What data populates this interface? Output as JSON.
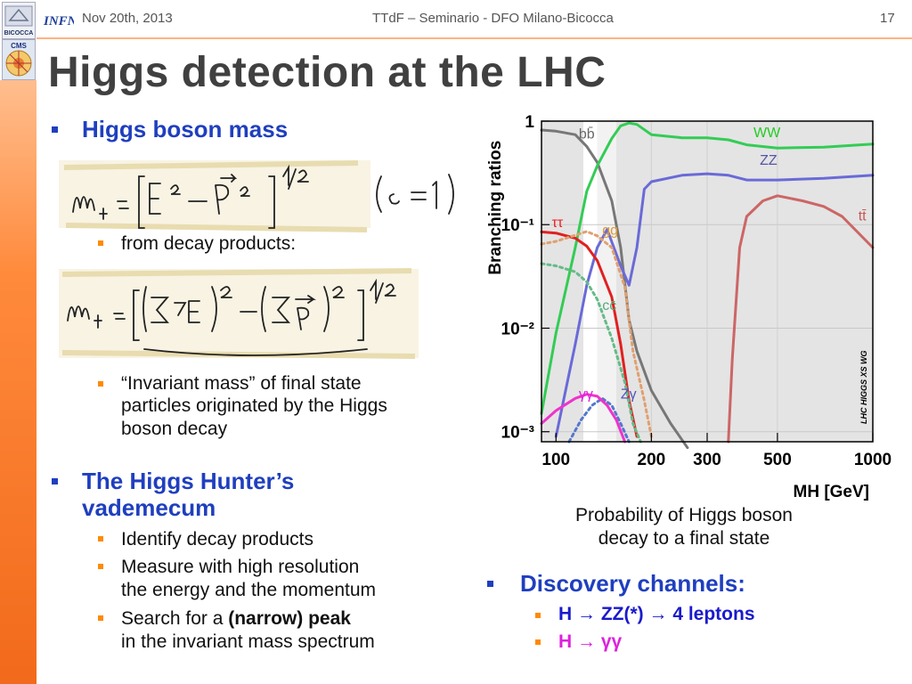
{
  "header": {
    "date": "Nov 20th, 2013",
    "center": "TTdF – Seminario - DFO Milano-Bicocca",
    "page": "17",
    "logos": {
      "infn": "INFN",
      "bicocca": "BICOCCA",
      "cms": "CMS"
    }
  },
  "title": "Higgs detection at the LHC",
  "left": {
    "bullet1": "Higgs boson mass",
    "sub1": "from decay products:",
    "sub2_line1": "“Invariant mass” of final state",
    "sub2_line2": "particles originated by the Higgs",
    "sub2_line3": "boson decay",
    "bullet2_line1": "The Higgs Hunter’s",
    "bullet2_line2": "vademecum",
    "v1": "Identify decay products",
    "v2_line1": "Measure with high resolution",
    "v2_line2": "the energy and the momentum",
    "v3_a": "Search for a ",
    "v3_b": "(narrow) peak",
    "v3_line2": "in the invariant mass spectrum"
  },
  "right": {
    "caption_line1": "Probability of Higgs boson",
    "caption_line2": "decay to a final state",
    "bullet": "Discovery channels:",
    "ch1": "H → ZZ(*) → 4 leptons",
    "ch2_a": "H → ",
    "ch2_b": "γγ"
  },
  "chart_data": {
    "type": "line",
    "ylabel": "Branching ratios",
    "xlabel": "M_H [GeV]",
    "xscale": "log",
    "yscale": "log",
    "xlim": [
      90,
      1000
    ],
    "ylim": [
      0.0008,
      1
    ],
    "xticks": [
      "100",
      "200",
      "300",
      "500",
      "1000"
    ],
    "yticks": [
      "1",
      "10⁻¹",
      "10⁻²",
      "10⁻³"
    ],
    "watermark": "LHC HIGGS XS WG",
    "series": [
      {
        "name": "bb̄",
        "color": "#777777",
        "points": [
          [
            90,
            0.82
          ],
          [
            100,
            0.8
          ],
          [
            115,
            0.74
          ],
          [
            125,
            0.57
          ],
          [
            135,
            0.4
          ],
          [
            150,
            0.17
          ],
          [
            160,
            0.06
          ],
          [
            170,
            0.012
          ],
          [
            180,
            0.006
          ],
          [
            200,
            0.0025
          ],
          [
            230,
            0.0012
          ],
          [
            260,
            0.0007
          ]
        ]
      },
      {
        "name": "WW",
        "color": "#33cc55",
        "points": [
          [
            90,
            0.0015
          ],
          [
            100,
            0.009
          ],
          [
            115,
            0.06
          ],
          [
            125,
            0.21
          ],
          [
            135,
            0.37
          ],
          [
            150,
            0.68
          ],
          [
            160,
            0.9
          ],
          [
            170,
            0.96
          ],
          [
            180,
            0.93
          ],
          [
            200,
            0.74
          ],
          [
            250,
            0.69
          ],
          [
            300,
            0.69
          ],
          [
            350,
            0.66
          ],
          [
            400,
            0.59
          ],
          [
            500,
            0.55
          ],
          [
            700,
            0.56
          ],
          [
            1000,
            0.6
          ]
        ]
      },
      {
        "name": "ZZ",
        "color": "#6a6ad8",
        "points": [
          [
            100,
            0.0009
          ],
          [
            115,
            0.007
          ],
          [
            125,
            0.026
          ],
          [
            135,
            0.06
          ],
          [
            145,
            0.09
          ],
          [
            160,
            0.04
          ],
          [
            170,
            0.026
          ],
          [
            180,
            0.06
          ],
          [
            190,
            0.22
          ],
          [
            200,
            0.26
          ],
          [
            250,
            0.3
          ],
          [
            300,
            0.31
          ],
          [
            350,
            0.3
          ],
          [
            400,
            0.27
          ],
          [
            500,
            0.27
          ],
          [
            700,
            0.28
          ],
          [
            1000,
            0.3
          ]
        ]
      },
      {
        "name": "tt̄",
        "color": "#cc6666",
        "points": [
          [
            350,
            0.0008
          ],
          [
            360,
            0.005
          ],
          [
            380,
            0.06
          ],
          [
            400,
            0.12
          ],
          [
            450,
            0.17
          ],
          [
            500,
            0.19
          ],
          [
            600,
            0.17
          ],
          [
            700,
            0.15
          ],
          [
            800,
            0.12
          ],
          [
            1000,
            0.06
          ]
        ]
      },
      {
        "name": "ττ",
        "color": "#e02020",
        "points": [
          [
            90,
            0.085
          ],
          [
            100,
            0.083
          ],
          [
            115,
            0.074
          ],
          [
            125,
            0.062
          ],
          [
            135,
            0.045
          ],
          [
            150,
            0.02
          ],
          [
            160,
            0.007
          ],
          [
            170,
            0.002
          ],
          [
            180,
            0.0009
          ]
        ]
      },
      {
        "name": "gg",
        "color": "#e0a070",
        "dashed": true,
        "points": [
          [
            90,
            0.065
          ],
          [
            100,
            0.069
          ],
          [
            115,
            0.079
          ],
          [
            125,
            0.086
          ],
          [
            135,
            0.078
          ],
          [
            150,
            0.06
          ],
          [
            165,
            0.025
          ],
          [
            175,
            0.006
          ],
          [
            190,
            0.002
          ],
          [
            200,
            0.0009
          ]
        ]
      },
      {
        "name": "cc̄",
        "color": "#66bb88",
        "dashed": true,
        "points": [
          [
            90,
            0.042
          ],
          [
            100,
            0.04
          ],
          [
            115,
            0.035
          ],
          [
            125,
            0.028
          ],
          [
            135,
            0.019
          ],
          [
            150,
            0.008
          ],
          [
            165,
            0.003
          ],
          [
            175,
            0.0012
          ],
          [
            185,
            0.0008
          ]
        ]
      },
      {
        "name": "Zγ",
        "color": "#5577cc",
        "dashed": true,
        "points": [
          [
            110,
            0.0008
          ],
          [
            120,
            0.0013
          ],
          [
            130,
            0.0018
          ],
          [
            140,
            0.0021
          ],
          [
            150,
            0.0018
          ],
          [
            160,
            0.0012
          ],
          [
            170,
            0.0008
          ]
        ]
      },
      {
        "name": "γγ",
        "color": "#ee33cc",
        "points": [
          [
            90,
            0.0012
          ],
          [
            100,
            0.0016
          ],
          [
            115,
            0.0021
          ],
          [
            125,
            0.0023
          ],
          [
            135,
            0.0022
          ],
          [
            145,
            0.0018
          ],
          [
            155,
            0.0013
          ],
          [
            165,
            0.0008
          ]
        ]
      }
    ]
  }
}
